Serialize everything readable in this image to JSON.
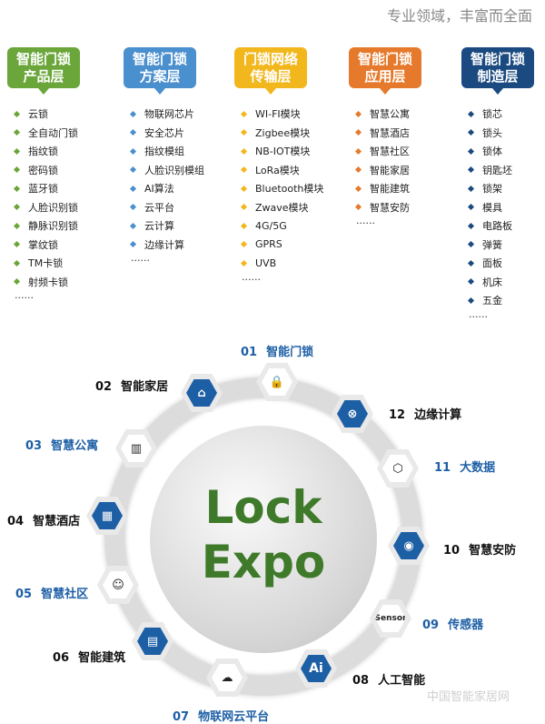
{
  "tagline": "专业领域，丰富而全面",
  "columns": [
    {
      "title1": "智能门锁",
      "title2": "产品层",
      "color": "#6aa63a",
      "items": [
        "云锁",
        "全自动门锁",
        "指纹锁",
        "密码锁",
        "蓝牙锁",
        "人脸识别锁",
        "静脉识别锁",
        "掌纹锁",
        "TM卡锁",
        "射频卡锁"
      ],
      "more": "......"
    },
    {
      "title1": "智能门锁",
      "title2": "方案层",
      "color": "#4a8fce",
      "items": [
        "物联网芯片",
        "安全芯片",
        "指纹模组",
        "人脸识别模组",
        "AI算法",
        "云平台",
        "云计算",
        "边缘计算"
      ],
      "more": "......"
    },
    {
      "title1": "门锁网络",
      "title2": "传输层",
      "color": "#f2b71c",
      "items": [
        "WI-FI模块",
        "Zigbee模块",
        "NB-IOT模块",
        "LoRa模块",
        "Bluetooth模块",
        "Zwave模块",
        "4G/5G",
        "GPRS",
        "UVB"
      ],
      "more": "......"
    },
    {
      "title1": "智能门锁",
      "title2": "应用层",
      "color": "#e67a2c",
      "items": [
        "智慧公寓",
        "智慧酒店",
        "智慧社区",
        "智能家居",
        "智能建筑",
        "智慧安防"
      ],
      "more": "......"
    },
    {
      "title1": "智能门锁",
      "title2": "制造层",
      "color": "#1b4a80",
      "items": [
        "锁芯",
        "锁头",
        "锁体",
        "钥匙坯",
        "锁架",
        "模具",
        "电路板",
        "弹簧",
        "面板",
        "机床",
        "五金"
      ],
      "more": "......"
    }
  ],
  "globe": {
    "line1": "Lock",
    "line2": "Expo"
  },
  "nodes": [
    {
      "num": "01",
      "label": "智能门锁",
      "icon": "smart-lock-icon"
    },
    {
      "num": "02",
      "label": "智能家居",
      "icon": "smart-home-icon"
    },
    {
      "num": "03",
      "label": "智慧公寓",
      "icon": "apartment-icon"
    },
    {
      "num": "04",
      "label": "智慧酒店",
      "icon": "hotel-icon"
    },
    {
      "num": "05",
      "label": "智慧社区",
      "icon": "community-icon"
    },
    {
      "num": "06",
      "label": "智能建筑",
      "icon": "building-icon"
    },
    {
      "num": "07",
      "label": "物联网云平台",
      "icon": "cloud-icon"
    },
    {
      "num": "08",
      "label": "人工智能",
      "icon": "ai-icon",
      "text": "Ai"
    },
    {
      "num": "09",
      "label": "传感器",
      "icon": "sensor-icon",
      "text": "Sensor"
    },
    {
      "num": "10",
      "label": "智慧安防",
      "icon": "camera-icon"
    },
    {
      "num": "11",
      "label": "大数据",
      "icon": "big-data-icon"
    },
    {
      "num": "12",
      "label": "边缘计算",
      "icon": "edge-computing-icon"
    }
  ],
  "watermark": "中国智能家居网"
}
